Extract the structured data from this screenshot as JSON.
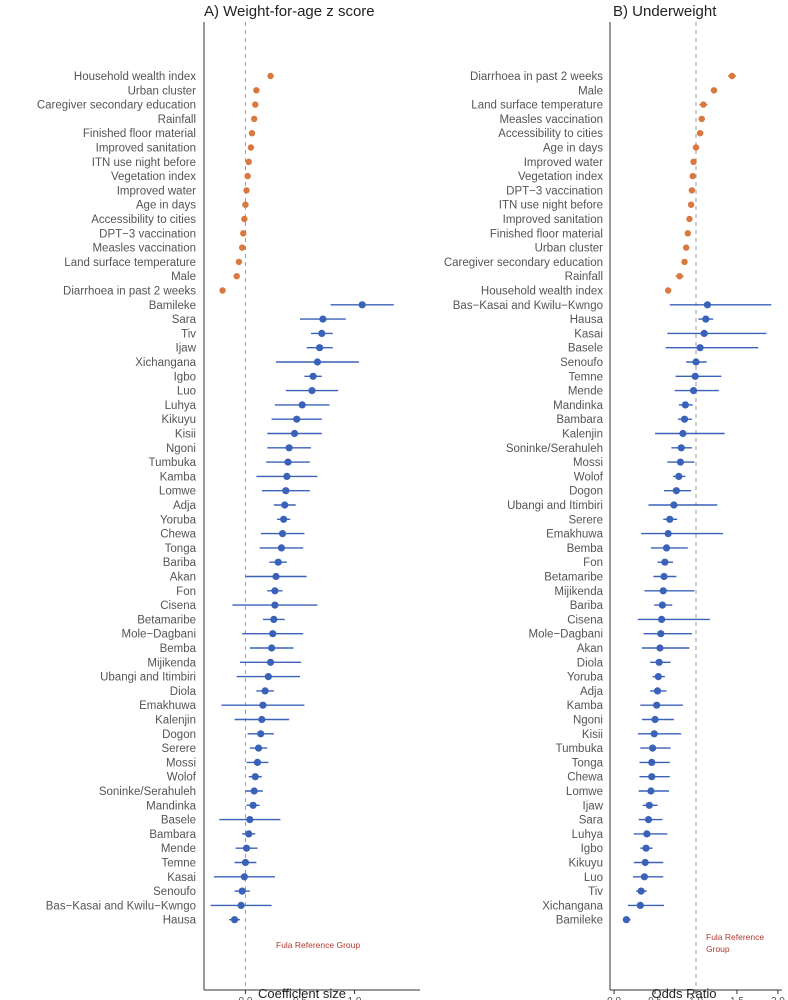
{
  "chart_data": [
    {
      "type": "forest",
      "title": "A) Weight-for-age z score",
      "xlabel": "Coefficient size",
      "xlim": [
        -0.38,
        1.6
      ],
      "xticks": [
        0.0,
        0.5,
        1.0
      ],
      "xtick_labels": [
        "0.0",
        "0.5",
        "1.0"
      ],
      "reference_line": 0,
      "reference_note": "Fula Reference Group",
      "colors": {
        "covariate": "#d9783f",
        "ethnic": "#3a62b8"
      },
      "rows": [
        {
          "label": "Household wealth index",
          "group": "covariate",
          "est": 0.23,
          "lo": 0.21,
          "hi": 0.25
        },
        {
          "label": "Urban cluster",
          "group": "covariate",
          "est": 0.1,
          "lo": 0.08,
          "hi": 0.12
        },
        {
          "label": "Caregiver secondary education",
          "group": "covariate",
          "est": 0.09,
          "lo": 0.07,
          "hi": 0.11
        },
        {
          "label": "Rainfall",
          "group": "covariate",
          "est": 0.08,
          "lo": 0.06,
          "hi": 0.1
        },
        {
          "label": "Finished floor material",
          "group": "covariate",
          "est": 0.06,
          "lo": 0.04,
          "hi": 0.08
        },
        {
          "label": "Improved sanitation",
          "group": "covariate",
          "est": 0.05,
          "lo": 0.03,
          "hi": 0.07
        },
        {
          "label": "ITN use night before",
          "group": "covariate",
          "est": 0.03,
          "lo": 0.01,
          "hi": 0.05
        },
        {
          "label": "Vegetation index",
          "group": "covariate",
          "est": 0.02,
          "lo": 0.0,
          "hi": 0.04
        },
        {
          "label": "Improved water",
          "group": "covariate",
          "est": 0.01,
          "lo": -0.01,
          "hi": 0.03
        },
        {
          "label": "Age in days",
          "group": "covariate",
          "est": 0.0,
          "lo": -0.02,
          "hi": 0.02
        },
        {
          "label": "Accessibility to cities",
          "group": "covariate",
          "est": -0.01,
          "lo": -0.03,
          "hi": 0.01
        },
        {
          "label": "DPT−3 vaccination",
          "group": "covariate",
          "est": -0.02,
          "lo": -0.04,
          "hi": 0.0
        },
        {
          "label": "Measles vaccination",
          "group": "covariate",
          "est": -0.03,
          "lo": -0.05,
          "hi": -0.01
        },
        {
          "label": "Land surface temperature",
          "group": "covariate",
          "est": -0.06,
          "lo": -0.08,
          "hi": -0.04
        },
        {
          "label": "Male",
          "group": "covariate",
          "est": -0.08,
          "lo": -0.1,
          "hi": -0.06
        },
        {
          "label": "Diarrhoea in past 2 weeks",
          "group": "covariate",
          "est": -0.21,
          "lo": -0.23,
          "hi": -0.19
        },
        {
          "label": "Bamileke",
          "group": "ethnic",
          "est": 1.07,
          "lo": 0.78,
          "hi": 1.36
        },
        {
          "label": "Sara",
          "group": "ethnic",
          "est": 0.71,
          "lo": 0.5,
          "hi": 0.92
        },
        {
          "label": "Tiv",
          "group": "ethnic",
          "est": 0.7,
          "lo": 0.6,
          "hi": 0.8
        },
        {
          "label": "Ijaw",
          "group": "ethnic",
          "est": 0.68,
          "lo": 0.56,
          "hi": 0.8
        },
        {
          "label": "Xichangana",
          "group": "ethnic",
          "est": 0.66,
          "lo": 0.28,
          "hi": 1.04
        },
        {
          "label": "Igbo",
          "group": "ethnic",
          "est": 0.62,
          "lo": 0.54,
          "hi": 0.7
        },
        {
          "label": "Luo",
          "group": "ethnic",
          "est": 0.61,
          "lo": 0.37,
          "hi": 0.85
        },
        {
          "label": "Luhya",
          "group": "ethnic",
          "est": 0.52,
          "lo": 0.27,
          "hi": 0.77
        },
        {
          "label": "Kikuyu",
          "group": "ethnic",
          "est": 0.47,
          "lo": 0.24,
          "hi": 0.7
        },
        {
          "label": "Kisii",
          "group": "ethnic",
          "est": 0.45,
          "lo": 0.2,
          "hi": 0.7
        },
        {
          "label": "Ngoni",
          "group": "ethnic",
          "est": 0.4,
          "lo": 0.2,
          "hi": 0.6
        },
        {
          "label": "Tumbuka",
          "group": "ethnic",
          "est": 0.39,
          "lo": 0.19,
          "hi": 0.59
        },
        {
          "label": "Kamba",
          "group": "ethnic",
          "est": 0.38,
          "lo": 0.1,
          "hi": 0.66
        },
        {
          "label": "Lomwe",
          "group": "ethnic",
          "est": 0.37,
          "lo": 0.15,
          "hi": 0.59
        },
        {
          "label": "Adja",
          "group": "ethnic",
          "est": 0.36,
          "lo": 0.26,
          "hi": 0.46
        },
        {
          "label": "Yoruba",
          "group": "ethnic",
          "est": 0.35,
          "lo": 0.29,
          "hi": 0.41
        },
        {
          "label": "Chewa",
          "group": "ethnic",
          "est": 0.34,
          "lo": 0.14,
          "hi": 0.54
        },
        {
          "label": "Tonga",
          "group": "ethnic",
          "est": 0.33,
          "lo": 0.13,
          "hi": 0.53
        },
        {
          "label": "Bariba",
          "group": "ethnic",
          "est": 0.3,
          "lo": 0.22,
          "hi": 0.38
        },
        {
          "label": "Akan",
          "group": "ethnic",
          "est": 0.28,
          "lo": 0.0,
          "hi": 0.56
        },
        {
          "label": "Fon",
          "group": "ethnic",
          "est": 0.27,
          "lo": 0.2,
          "hi": 0.34
        },
        {
          "label": "Cisena",
          "group": "ethnic",
          "est": 0.27,
          "lo": -0.12,
          "hi": 0.66
        },
        {
          "label": "Betamaribe",
          "group": "ethnic",
          "est": 0.26,
          "lo": 0.16,
          "hi": 0.36
        },
        {
          "label": "Mole−Dagbani",
          "group": "ethnic",
          "est": 0.25,
          "lo": -0.03,
          "hi": 0.53
        },
        {
          "label": "Bemba",
          "group": "ethnic",
          "est": 0.24,
          "lo": 0.04,
          "hi": 0.44
        },
        {
          "label": "Mijikenda",
          "group": "ethnic",
          "est": 0.23,
          "lo": -0.05,
          "hi": 0.51
        },
        {
          "label": "Ubangi and Itimbiri",
          "group": "ethnic",
          "est": 0.21,
          "lo": -0.08,
          "hi": 0.5
        },
        {
          "label": "Diola",
          "group": "ethnic",
          "est": 0.18,
          "lo": 0.1,
          "hi": 0.26
        },
        {
          "label": "Emakhuwa",
          "group": "ethnic",
          "est": 0.16,
          "lo": -0.22,
          "hi": 0.54
        },
        {
          "label": "Kalenjin",
          "group": "ethnic",
          "est": 0.15,
          "lo": -0.1,
          "hi": 0.4
        },
        {
          "label": "Dogon",
          "group": "ethnic",
          "est": 0.14,
          "lo": 0.02,
          "hi": 0.26
        },
        {
          "label": "Serere",
          "group": "ethnic",
          "est": 0.12,
          "lo": 0.04,
          "hi": 0.2
        },
        {
          "label": "Mossi",
          "group": "ethnic",
          "est": 0.11,
          "lo": 0.01,
          "hi": 0.21
        },
        {
          "label": "Wolof",
          "group": "ethnic",
          "est": 0.09,
          "lo": 0.03,
          "hi": 0.15
        },
        {
          "label": "Soninke/Serahuleh",
          "group": "ethnic",
          "est": 0.08,
          "lo": 0.0,
          "hi": 0.16
        },
        {
          "label": "Mandinka",
          "group": "ethnic",
          "est": 0.07,
          "lo": 0.01,
          "hi": 0.13
        },
        {
          "label": "Basele",
          "group": "ethnic",
          "est": 0.04,
          "lo": -0.24,
          "hi": 0.32
        },
        {
          "label": "Bambara",
          "group": "ethnic",
          "est": 0.03,
          "lo": -0.03,
          "hi": 0.09
        },
        {
          "label": "Mende",
          "group": "ethnic",
          "est": 0.01,
          "lo": -0.09,
          "hi": 0.11
        },
        {
          "label": "Temne",
          "group": "ethnic",
          "est": 0.0,
          "lo": -0.1,
          "hi": 0.1
        },
        {
          "label": "Kasai",
          "group": "ethnic",
          "est": -0.01,
          "lo": -0.29,
          "hi": 0.27
        },
        {
          "label": "Senoufo",
          "group": "ethnic",
          "est": -0.03,
          "lo": -0.1,
          "hi": 0.04
        },
        {
          "label": "Bas−Kasai and Kwilu−Kwngo",
          "group": "ethnic",
          "est": -0.04,
          "lo": -0.32,
          "hi": 0.24
        },
        {
          "label": "Hausa",
          "group": "ethnic",
          "est": -0.1,
          "lo": -0.15,
          "hi": -0.05
        }
      ]
    },
    {
      "type": "forest",
      "title": "B) Underweight",
      "xlabel": "Odds Ratio",
      "xlim": [
        -0.05,
        2.05
      ],
      "xticks": [
        0.0,
        0.5,
        1.0,
        1.5,
        2.0
      ],
      "xtick_labels": [
        "0.0",
        "0.5",
        "1.0",
        "1.5",
        "2.0"
      ],
      "reference_line": 1,
      "reference_note": "Fula Reference Group",
      "colors": {
        "covariate": "#d9783f",
        "ethnic": "#3a62b8"
      },
      "rows": [
        {
          "label": "Diarrhoea in past 2 weeks",
          "group": "covariate",
          "est": 1.44,
          "lo": 1.39,
          "hi": 1.49
        },
        {
          "label": "Male",
          "group": "covariate",
          "est": 1.22,
          "lo": 1.18,
          "hi": 1.26
        },
        {
          "label": "Land surface temperature",
          "group": "covariate",
          "est": 1.09,
          "lo": 1.04,
          "hi": 1.14
        },
        {
          "label": "Measles vaccination",
          "group": "covariate",
          "est": 1.07,
          "lo": 1.03,
          "hi": 1.11
        },
        {
          "label": "Accessibility to cities",
          "group": "covariate",
          "est": 1.05,
          "lo": 1.01,
          "hi": 1.09
        },
        {
          "label": "Age in days",
          "group": "covariate",
          "est": 1.0,
          "lo": 0.98,
          "hi": 1.02
        },
        {
          "label": "Improved water",
          "group": "covariate",
          "est": 0.97,
          "lo": 0.94,
          "hi": 1.0
        },
        {
          "label": "Vegetation index",
          "group": "covariate",
          "est": 0.96,
          "lo": 0.93,
          "hi": 0.99
        },
        {
          "label": "DPT−3 vaccination",
          "group": "covariate",
          "est": 0.95,
          "lo": 0.91,
          "hi": 0.99
        },
        {
          "label": "ITN use night before",
          "group": "covariate",
          "est": 0.94,
          "lo": 0.91,
          "hi": 0.97
        },
        {
          "label": "Improved sanitation",
          "group": "covariate",
          "est": 0.92,
          "lo": 0.89,
          "hi": 0.95
        },
        {
          "label": "Finished floor material",
          "group": "covariate",
          "est": 0.9,
          "lo": 0.87,
          "hi": 0.93
        },
        {
          "label": "Urban cluster",
          "group": "covariate",
          "est": 0.88,
          "lo": 0.85,
          "hi": 0.91
        },
        {
          "label": "Caregiver secondary education",
          "group": "covariate",
          "est": 0.86,
          "lo": 0.83,
          "hi": 0.89
        },
        {
          "label": "Rainfall",
          "group": "covariate",
          "est": 0.8,
          "lo": 0.75,
          "hi": 0.85
        },
        {
          "label": "Household wealth index",
          "group": "covariate",
          "est": 0.66,
          "lo": 0.63,
          "hi": 0.69
        },
        {
          "label": "Bas−Kasai and Kwilu−Kwngo",
          "group": "ethnic",
          "est": 1.14,
          "lo": 0.68,
          "hi": 1.92
        },
        {
          "label": "Hausa",
          "group": "ethnic",
          "est": 1.12,
          "lo": 1.03,
          "hi": 1.21
        },
        {
          "label": "Kasai",
          "group": "ethnic",
          "est": 1.1,
          "lo": 0.65,
          "hi": 1.86
        },
        {
          "label": "Basele",
          "group": "ethnic",
          "est": 1.05,
          "lo": 0.63,
          "hi": 1.76
        },
        {
          "label": "Senoufo",
          "group": "ethnic",
          "est": 1.0,
          "lo": 0.88,
          "hi": 1.13
        },
        {
          "label": "Temne",
          "group": "ethnic",
          "est": 0.99,
          "lo": 0.75,
          "hi": 1.31
        },
        {
          "label": "Mende",
          "group": "ethnic",
          "est": 0.97,
          "lo": 0.74,
          "hi": 1.28
        },
        {
          "label": "Mandinka",
          "group": "ethnic",
          "est": 0.87,
          "lo": 0.79,
          "hi": 0.96
        },
        {
          "label": "Bambara",
          "group": "ethnic",
          "est": 0.86,
          "lo": 0.78,
          "hi": 0.95
        },
        {
          "label": "Kalenjin",
          "group": "ethnic",
          "est": 0.84,
          "lo": 0.5,
          "hi": 1.35
        },
        {
          "label": "Soninke/Serahuleh",
          "group": "ethnic",
          "est": 0.82,
          "lo": 0.7,
          "hi": 0.95
        },
        {
          "label": "Mossi",
          "group": "ethnic",
          "est": 0.81,
          "lo": 0.65,
          "hi": 0.98
        },
        {
          "label": "Wolof",
          "group": "ethnic",
          "est": 0.79,
          "lo": 0.72,
          "hi": 0.87
        },
        {
          "label": "Dogon",
          "group": "ethnic",
          "est": 0.76,
          "lo": 0.61,
          "hi": 0.94
        },
        {
          "label": "Ubangi and Itimbiri",
          "group": "ethnic",
          "est": 0.73,
          "lo": 0.42,
          "hi": 1.26
        },
        {
          "label": "Serere",
          "group": "ethnic",
          "est": 0.68,
          "lo": 0.6,
          "hi": 0.77
        },
        {
          "label": "Emakhuwa",
          "group": "ethnic",
          "est": 0.66,
          "lo": 0.33,
          "hi": 1.33
        },
        {
          "label": "Bemba",
          "group": "ethnic",
          "est": 0.64,
          "lo": 0.45,
          "hi": 0.9
        },
        {
          "label": "Fon",
          "group": "ethnic",
          "est": 0.62,
          "lo": 0.53,
          "hi": 0.72
        },
        {
          "label": "Betamaribe",
          "group": "ethnic",
          "est": 0.61,
          "lo": 0.48,
          "hi": 0.76
        },
        {
          "label": "Mijikenda",
          "group": "ethnic",
          "est": 0.6,
          "lo": 0.37,
          "hi": 0.98
        },
        {
          "label": "Bariba",
          "group": "ethnic",
          "est": 0.59,
          "lo": 0.49,
          "hi": 0.71
        },
        {
          "label": "Cisena",
          "group": "ethnic",
          "est": 0.58,
          "lo": 0.29,
          "hi": 1.17
        },
        {
          "label": "Mole−Dagbani",
          "group": "ethnic",
          "est": 0.57,
          "lo": 0.36,
          "hi": 0.95
        },
        {
          "label": "Akan",
          "group": "ethnic",
          "est": 0.56,
          "lo": 0.34,
          "hi": 0.92
        },
        {
          "label": "Diola",
          "group": "ethnic",
          "est": 0.55,
          "lo": 0.44,
          "hi": 0.69
        },
        {
          "label": "Yoruba",
          "group": "ethnic",
          "est": 0.54,
          "lo": 0.47,
          "hi": 0.62
        },
        {
          "label": "Adja",
          "group": "ethnic",
          "est": 0.53,
          "lo": 0.44,
          "hi": 0.64
        },
        {
          "label": "Kamba",
          "group": "ethnic",
          "est": 0.52,
          "lo": 0.32,
          "hi": 0.84
        },
        {
          "label": "Ngoni",
          "group": "ethnic",
          "est": 0.5,
          "lo": 0.34,
          "hi": 0.73
        },
        {
          "label": "Kisii",
          "group": "ethnic",
          "est": 0.49,
          "lo": 0.29,
          "hi": 0.82
        },
        {
          "label": "Tumbuka",
          "group": "ethnic",
          "est": 0.47,
          "lo": 0.32,
          "hi": 0.69
        },
        {
          "label": "Tonga",
          "group": "ethnic",
          "est": 0.46,
          "lo": 0.31,
          "hi": 0.68
        },
        {
          "label": "Chewa",
          "group": "ethnic",
          "est": 0.46,
          "lo": 0.31,
          "hi": 0.68
        },
        {
          "label": "Lomwe",
          "group": "ethnic",
          "est": 0.45,
          "lo": 0.3,
          "hi": 0.67
        },
        {
          "label": "Ijaw",
          "group": "ethnic",
          "est": 0.43,
          "lo": 0.35,
          "hi": 0.53
        },
        {
          "label": "Sara",
          "group": "ethnic",
          "est": 0.42,
          "lo": 0.3,
          "hi": 0.59
        },
        {
          "label": "Luhya",
          "group": "ethnic",
          "est": 0.4,
          "lo": 0.24,
          "hi": 0.65
        },
        {
          "label": "Igbo",
          "group": "ethnic",
          "est": 0.39,
          "lo": 0.32,
          "hi": 0.47
        },
        {
          "label": "Kikuyu",
          "group": "ethnic",
          "est": 0.38,
          "lo": 0.24,
          "hi": 0.6
        },
        {
          "label": "Luo",
          "group": "ethnic",
          "est": 0.37,
          "lo": 0.23,
          "hi": 0.6
        },
        {
          "label": "Tiv",
          "group": "ethnic",
          "est": 0.33,
          "lo": 0.27,
          "hi": 0.4
        },
        {
          "label": "Xichangana",
          "group": "ethnic",
          "est": 0.32,
          "lo": 0.17,
          "hi": 0.61
        },
        {
          "label": "Bamileke",
          "group": "ethnic",
          "est": 0.15,
          "lo": 0.11,
          "hi": 0.2
        }
      ]
    }
  ]
}
